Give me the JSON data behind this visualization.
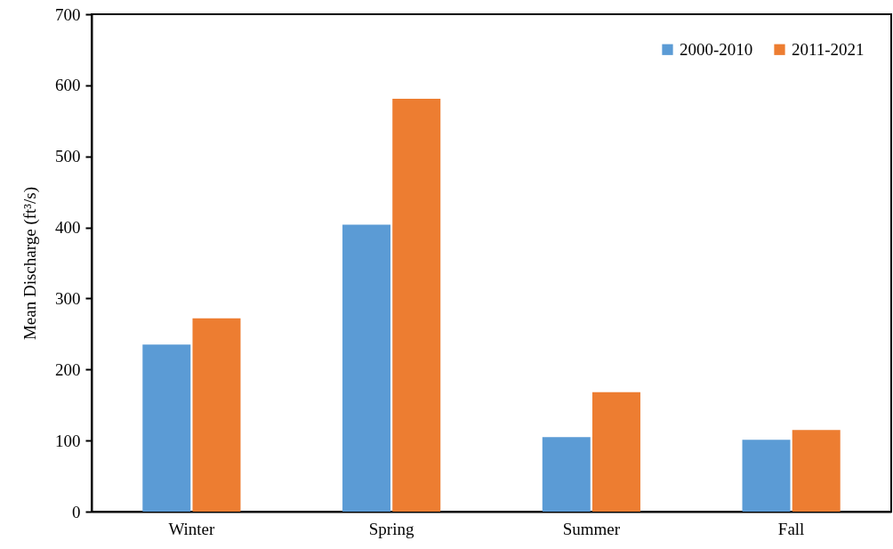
{
  "chart_data": {
    "type": "bar",
    "ylabel": "Mean Discharge (ft³/s)",
    "categories": [
      "Winter",
      "Spring",
      "Summer",
      "Fall"
    ],
    "series": [
      {
        "name": "2000-2010",
        "color": "#5b9bd5",
        "values": [
          235,
          404,
          105,
          101
        ]
      },
      {
        "name": "2011-2021",
        "color": "#ed7d31",
        "values": [
          272,
          581,
          168,
          115
        ]
      }
    ],
    "ylim": [
      0,
      700
    ],
    "yticks": [
      0,
      100,
      200,
      300,
      400,
      500,
      600,
      700
    ],
    "grid": false,
    "legend": "top right"
  }
}
